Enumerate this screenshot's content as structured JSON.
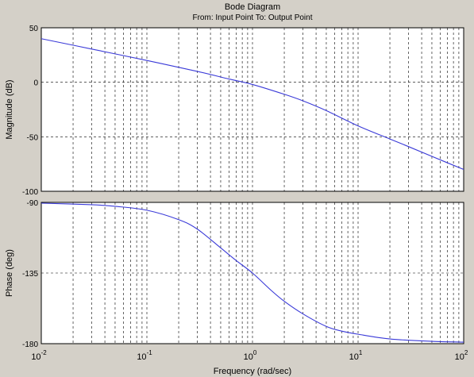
{
  "chart_data": {
    "type": "line",
    "title": "Bode Diagram",
    "subtitle": "From: Input Point  To: Output Point",
    "xlabel": "Frequency  (rad/sec)",
    "xscale": "log",
    "xlim": [
      0.01,
      100
    ],
    "x_ticks": [
      {
        "base": "10",
        "exp": "-2"
      },
      {
        "base": "10",
        "exp": "-1"
      },
      {
        "base": "10",
        "exp": "0"
      },
      {
        "base": "10",
        "exp": "1"
      },
      {
        "base": "10",
        "exp": "2"
      }
    ],
    "grid": true,
    "series_color": "#3a3ad8",
    "background": "#d4d0c8",
    "axes_background": "#ffffff",
    "subplots": [
      {
        "ylabel": "Magnitude (dB)",
        "ylim": [
          -100,
          50
        ],
        "yticks": [
          "50",
          "0",
          "-50",
          "-100"
        ],
        "x": [
          0.01,
          0.03,
          0.1,
          0.3,
          0.6,
          1,
          2,
          3,
          5,
          10,
          20,
          30,
          50,
          100
        ],
        "y": [
          40,
          30.5,
          20,
          10,
          3,
          -2,
          -11,
          -17,
          -26,
          -40,
          -52,
          -59,
          -68,
          -80
        ]
      },
      {
        "ylabel": "Phase (deg)",
        "ylim": [
          -180,
          -90
        ],
        "yticks": [
          "-90",
          "-135",
          "-180"
        ],
        "x": [
          0.01,
          0.03,
          0.05,
          0.1,
          0.2,
          0.3,
          0.5,
          0.7,
          1,
          1.5,
          2,
          3,
          5,
          7,
          10,
          20,
          50,
          100
        ],
        "y": [
          -90.5,
          -91.5,
          -92.5,
          -95,
          -101,
          -107,
          -119,
          -127,
          -135,
          -146,
          -153,
          -161,
          -169,
          -172,
          -174,
          -177,
          -178.5,
          -179
        ]
      }
    ]
  }
}
